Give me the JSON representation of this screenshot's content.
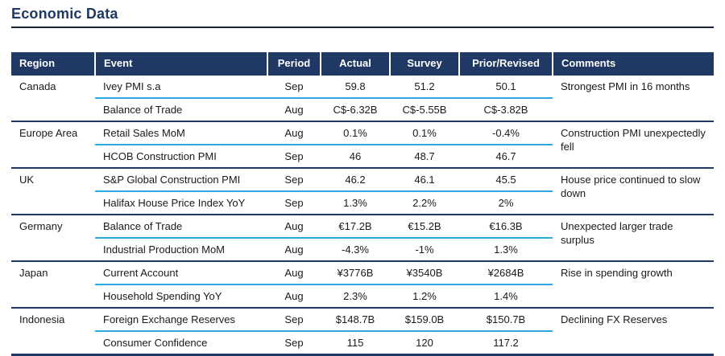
{
  "page": {
    "title": "Economic Data"
  },
  "colors": {
    "navy": "#1F3864",
    "cyan": "#29A9E0",
    "text": "#1a1a1a",
    "title_rule": "#1a2038"
  },
  "table": {
    "headers": [
      "Region",
      "Event",
      "Period",
      "Actual",
      "Survey",
      "Prior/Revised",
      "Comments"
    ],
    "groups": [
      {
        "region": "Canada",
        "comment": "Strongest PMI in 16 months",
        "rows": [
          {
            "event": "Ivey PMI s.a",
            "period": "Sep",
            "actual": "59.8",
            "survey": "51.2",
            "prior": "50.1"
          },
          {
            "event": "Balance of Trade",
            "period": "Aug",
            "actual": "C$-6.32B",
            "survey": "C$-5.55B",
            "prior": "C$-3.82B"
          }
        ]
      },
      {
        "region": "Europe Area",
        "comment": "Construction PMI unexpectedly fell",
        "rows": [
          {
            "event": "Retail Sales MoM",
            "period": "Aug",
            "actual": "0.1%",
            "survey": "0.1%",
            "prior": "-0.4%"
          },
          {
            "event": "HCOB Construction PMI",
            "period": "Sep",
            "actual": "46",
            "survey": "48.7",
            "prior": "46.7"
          }
        ]
      },
      {
        "region": "UK",
        "comment": "House price continued to slow down",
        "rows": [
          {
            "event": "S&P Global Construction PMI",
            "period": "Sep",
            "actual": "46.2",
            "survey": "46.1",
            "prior": "45.5"
          },
          {
            "event": "Halifax House Price Index YoY",
            "period": "Sep",
            "actual": "1.3%",
            "survey": "2.2%",
            "prior": "2%"
          }
        ]
      },
      {
        "region": "Germany",
        "comment": "Unexpected larger trade surplus",
        "rows": [
          {
            "event": "Balance of Trade",
            "period": "Aug",
            "actual": "€17.2B",
            "survey": "€15.2B",
            "prior": "€16.3B"
          },
          {
            "event": "Industrial Production MoM",
            "period": "Aug",
            "actual": "-4.3%",
            "survey": "-1%",
            "prior": "1.3%"
          }
        ]
      },
      {
        "region": "Japan",
        "comment": "Rise in spending growth",
        "rows": [
          {
            "event": "Current Account",
            "period": "Aug",
            "actual": "¥3776B",
            "survey": "¥3540B",
            "prior": "¥2684B"
          },
          {
            "event": "Household Spending YoY",
            "period": "Aug",
            "actual": "2.3%",
            "survey": "1.2%",
            "prior": "1.4%"
          }
        ]
      },
      {
        "region": "Indonesia",
        "comment": "Declining FX Reserves",
        "rows": [
          {
            "event": "Foreign Exchange Reserves",
            "period": "Sep",
            "actual": "$148.7B",
            "survey": "$159.0B",
            "prior": "$150.7B"
          },
          {
            "event": "Consumer Confidence",
            "period": "Sep",
            "actual": "115",
            "survey": "120",
            "prior": "117.2"
          }
        ]
      }
    ]
  }
}
